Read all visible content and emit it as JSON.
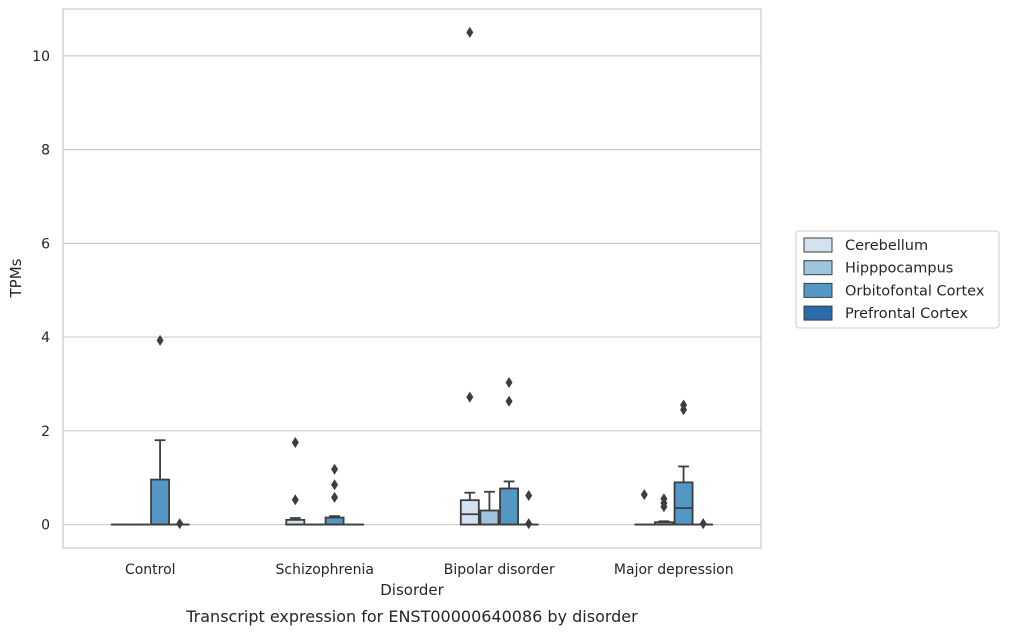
{
  "chart_data": {
    "type": "box",
    "caption": "Transcript expression for ENST00000640086 by disorder",
    "xlabel": "Disorder",
    "ylabel": "TPMs",
    "ylim": [
      -0.5,
      11.0
    ],
    "yticks": [
      0,
      2,
      4,
      6,
      8,
      10
    ],
    "grid": "horizontal",
    "legend_position": "right",
    "categories": [
      "Control",
      "Schizophrenia",
      "Bipolar disorder",
      "Major depression"
    ],
    "series": [
      {
        "name": "Cerebellum",
        "color": "#d3e2f0",
        "boxes": [
          {
            "min": 0,
            "q1": 0,
            "median": 0,
            "q3": 0,
            "max": 0,
            "outliers": []
          },
          {
            "min": 0,
            "q1": 0,
            "median": 0,
            "q3": 0.1,
            "max": 0.14,
            "outliers": [
              0.53,
              1.75
            ]
          },
          {
            "min": 0,
            "q1": 0,
            "median": 0.22,
            "q3": 0.52,
            "max": 0.68,
            "outliers": [
              2.72,
              10.5
            ]
          },
          {
            "min": 0,
            "q1": 0,
            "median": 0,
            "q3": 0,
            "max": 0,
            "outliers": [
              0.64
            ]
          }
        ]
      },
      {
        "name": "Hipppocampus",
        "color": "#9ec4de",
        "boxes": [
          {
            "min": 0,
            "q1": 0,
            "median": 0,
            "q3": 0,
            "max": 0,
            "outliers": []
          },
          {
            "min": 0,
            "q1": 0,
            "median": 0,
            "q3": 0,
            "max": 0,
            "outliers": []
          },
          {
            "min": 0,
            "q1": 0,
            "median": 0,
            "q3": 0.3,
            "max": 0.7,
            "outliers": []
          },
          {
            "min": 0,
            "q1": 0,
            "median": 0,
            "q3": 0.05,
            "max": 0.07,
            "outliers": [
              0.38,
              0.46,
              0.55
            ]
          }
        ]
      },
      {
        "name": "Orbitofontal Cortex",
        "color": "#5497c5",
        "boxes": [
          {
            "min": 0,
            "q1": 0,
            "median": 0,
            "q3": 0.96,
            "max": 1.8,
            "outliers": [
              3.93
            ]
          },
          {
            "min": 0,
            "q1": 0,
            "median": 0,
            "q3": 0.15,
            "max": 0.18,
            "outliers": [
              0.58,
              0.85,
              1.18
            ]
          },
          {
            "min": 0,
            "q1": 0,
            "median": 0,
            "q3": 0.77,
            "max": 0.92,
            "outliers": [
              2.63,
              3.03
            ]
          },
          {
            "min": 0,
            "q1": 0,
            "median": 0.35,
            "q3": 0.9,
            "max": 1.24,
            "outliers": [
              2.45,
              2.55
            ]
          }
        ]
      },
      {
        "name": "Prefrontal Cortex",
        "color": "#2a6cab",
        "boxes": [
          {
            "min": 0,
            "q1": 0,
            "median": 0,
            "q3": 0,
            "max": 0,
            "outliers": [
              0.02
            ]
          },
          {
            "min": 0,
            "q1": 0,
            "median": 0,
            "q3": 0,
            "max": 0,
            "outliers": []
          },
          {
            "min": 0,
            "q1": 0,
            "median": 0,
            "q3": 0,
            "max": 0,
            "outliers": [
              0.02,
              0.62
            ]
          },
          {
            "min": 0,
            "q1": 0,
            "median": 0,
            "q3": 0,
            "max": 0,
            "outliers": [
              0.02
            ]
          }
        ]
      }
    ]
  }
}
